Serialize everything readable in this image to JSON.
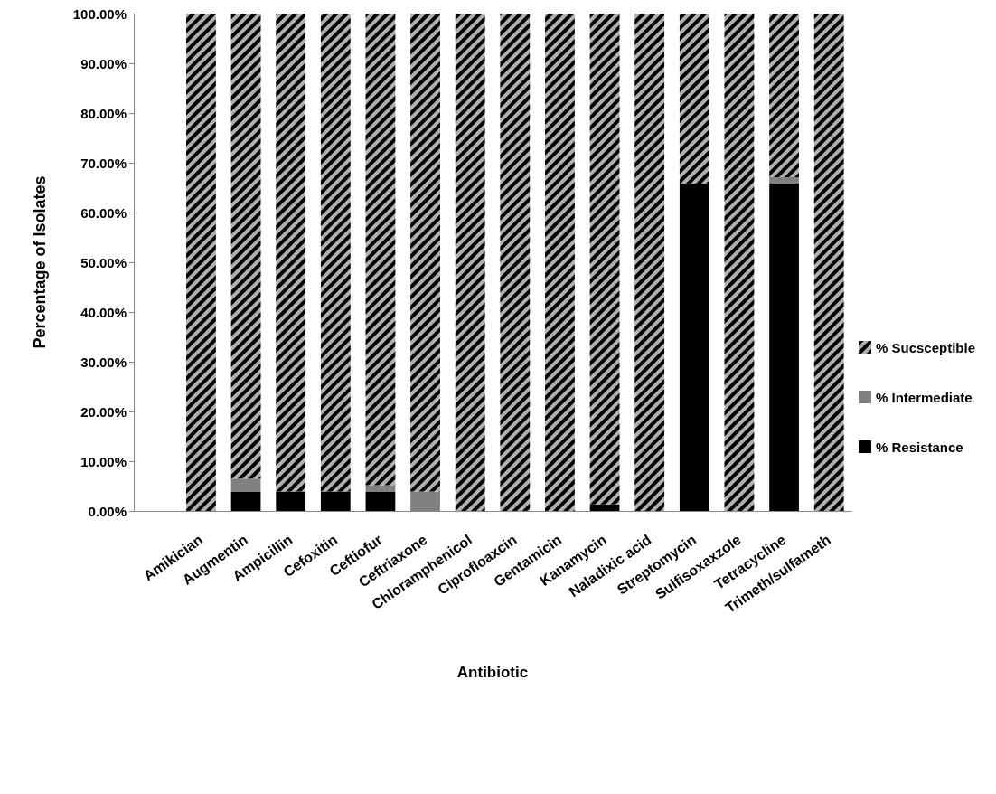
{
  "chart_data": {
    "type": "bar",
    "stacked": true,
    "xlabel": "Antibiotic",
    "ylabel": "Percentage of Isolates",
    "categories": [
      null,
      "Amikician",
      "Augmentin",
      "Ampicillin",
      "Cefoxitin",
      "Ceftiofur",
      "Ceftriaxone",
      "Chloramphenicol",
      "Ciprofloaxcin",
      "Gentamicin",
      "Kanamycin",
      "Naladixic acid",
      "Streptomycin",
      "Sulfisoxaxzole",
      "Tetracycline",
      "Trimeth/sulfameth"
    ],
    "series": [
      {
        "name": "% Resistance",
        "color": "#000000",
        "values": [
          null,
          0,
          3.9,
          3.9,
          3.9,
          3.9,
          0,
          0,
          0,
          0,
          1.3,
          0,
          65.8,
          0,
          65.8,
          0
        ]
      },
      {
        "name": "% Intermediate",
        "color": "#808080",
        "values": [
          null,
          0,
          2.6,
          0,
          0,
          1.3,
          3.9,
          0,
          0,
          0,
          0,
          0,
          0,
          0,
          1.3,
          0
        ]
      },
      {
        "name": "% Sucsceptible",
        "color": "#b0b0b0",
        "values": [
          null,
          100,
          93.5,
          96.1,
          96.1,
          94.8,
          96.1,
          100,
          100,
          100,
          98.7,
          100,
          34.2,
          100,
          32.9,
          100
        ]
      }
    ],
    "ylim": [
      0,
      100
    ],
    "yticks": [
      {
        "value": 0,
        "label": "0.00%"
      },
      {
        "value": 10,
        "label": "10.00%"
      },
      {
        "value": 20,
        "label": "20.00%"
      },
      {
        "value": 30,
        "label": "30.00%"
      },
      {
        "value": 40,
        "label": "40.00%"
      },
      {
        "value": 50,
        "label": "50.00%"
      },
      {
        "value": 60,
        "label": "60.00%"
      },
      {
        "value": 70,
        "label": "70.00%"
      },
      {
        "value": 80,
        "label": "80.00%"
      },
      {
        "value": 90,
        "label": "90.00%"
      },
      {
        "value": 100,
        "label": "100.00%"
      }
    ],
    "grid": false,
    "legend": "right"
  }
}
